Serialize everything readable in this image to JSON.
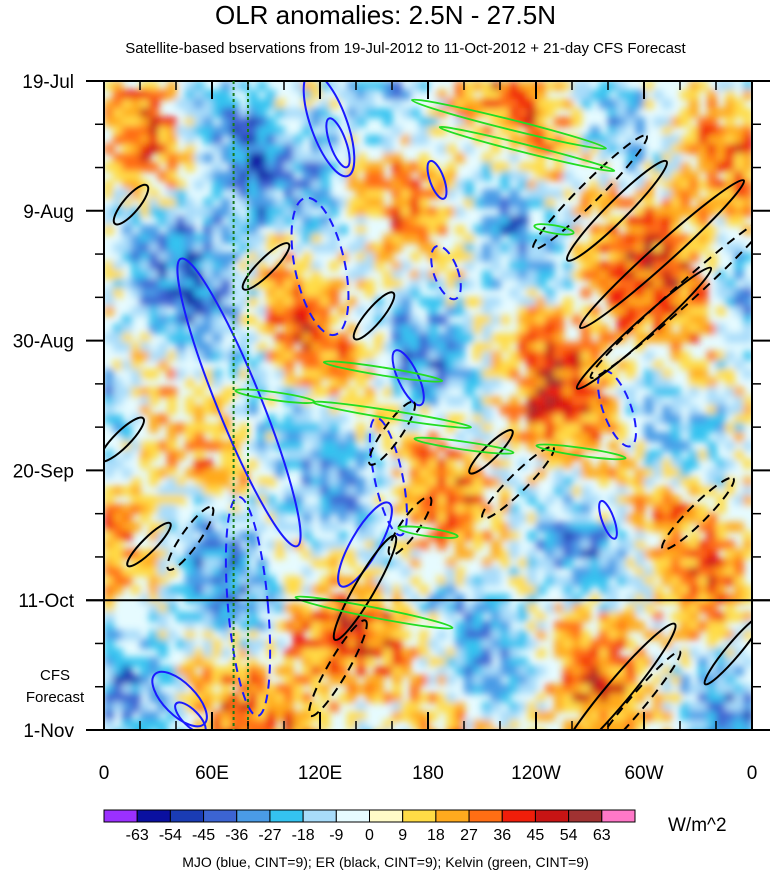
{
  "chart_data": {
    "type": "heatmap",
    "title": "OLR anomalies: 2.5N - 27.5N",
    "subtitle": "Satellite-based bservations from 19-Jul-2012 to 11-Oct-2012 + 21-day CFS Forecast",
    "x_axis": {
      "label": "",
      "ticks": [
        {
          "lon": 0,
          "label": "0"
        },
        {
          "lon": 60,
          "label": "60E"
        },
        {
          "lon": 120,
          "label": "120E"
        },
        {
          "lon": 180,
          "label": "180"
        },
        {
          "lon": 240,
          "label": "120W"
        },
        {
          "lon": 300,
          "label": "60W"
        },
        {
          "lon": 360,
          "label": "0"
        }
      ],
      "range": [
        0,
        360
      ]
    },
    "y_axis": {
      "ticks": [
        {
          "day": 0,
          "label": "19-Jul"
        },
        {
          "day": 21,
          "label": "9-Aug"
        },
        {
          "day": 42,
          "label": "30-Aug"
        },
        {
          "day": 63,
          "label": "20-Sep"
        },
        {
          "day": 84,
          "label": "11-Oct"
        },
        {
          "day": 105,
          "label": "1-Nov"
        }
      ],
      "range_days": [
        0,
        105
      ],
      "forecast_start_day": 84
    },
    "colorbar": {
      "levels": [
        "-63",
        "-54",
        "-45",
        "-36",
        "-27",
        "-18",
        "-9",
        "0",
        "9",
        "18",
        "27",
        "36",
        "45",
        "54",
        "63"
      ],
      "colors": [
        "#9b30ff",
        "#0a10a0",
        "#1a3cb4",
        "#3c64d2",
        "#4a9be6",
        "#34c3f0",
        "#a8dcfa",
        "#e6fbff",
        "#fffbc8",
        "#ffdc46",
        "#ffaa1e",
        "#ff6e14",
        "#f01e0a",
        "#c81414",
        "#a03232",
        "#ff78c8"
      ],
      "units": "W/m^2"
    },
    "forecast_label": [
      "CFS",
      "Forecast"
    ],
    "reference_longitudes": [
      72,
      80
    ],
    "footer": "MJO (blue, CINT=9); ER (black, CINT=9); Kelvin (green, CINT=9)",
    "contours": {
      "mjo_color": "#1a1aff",
      "er_color": "#000000",
      "kelvin_color": "#22dd22"
    }
  }
}
